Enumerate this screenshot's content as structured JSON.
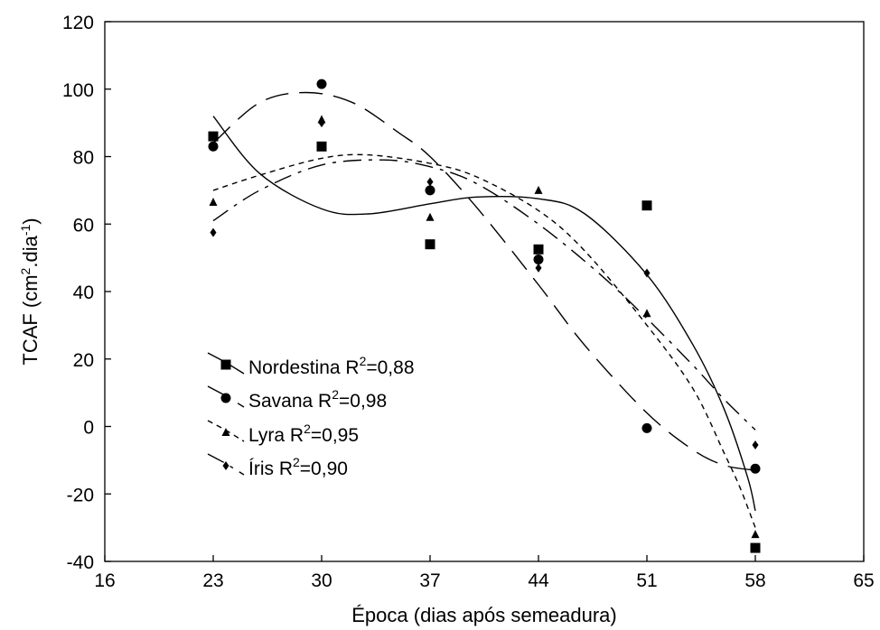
{
  "chart_data": {
    "type": "scatter",
    "xlabel": "Época (dias após semeadura)",
    "ylabel": "TCAF (cm2.dia-1)",
    "xlim": [
      16,
      65
    ],
    "ylim": [
      -40,
      120
    ],
    "xticks": [
      16,
      23,
      30,
      37,
      44,
      51,
      58,
      65
    ],
    "yticks": [
      -40,
      -20,
      0,
      20,
      40,
      60,
      80,
      100,
      120
    ],
    "grid": false,
    "legend_position": "lower-left",
    "series": [
      {
        "name": "Nordestina",
        "r2": "0,88",
        "legend_label": "Nordestina R",
        "legend_value": "=0,88",
        "marker": "square",
        "dash": "solid",
        "x": [
          23,
          30,
          37,
          44,
          51,
          58
        ],
        "y": [
          86,
          83,
          54,
          52.5,
          65.5,
          -36
        ],
        "fit": [
          [
            23,
            92
          ],
          [
            26,
            75
          ],
          [
            30,
            64.5
          ],
          [
            33,
            63
          ],
          [
            37,
            66
          ],
          [
            40,
            68
          ],
          [
            44,
            67.5
          ],
          [
            47,
            63
          ],
          [
            51,
            45
          ],
          [
            54,
            24
          ],
          [
            56,
            5
          ],
          [
            57.5,
            -15
          ],
          [
            58,
            -25
          ]
        ]
      },
      {
        "name": "Savana",
        "r2": "0,98",
        "legend_label": "Savana R",
        "legend_value": "=0,98",
        "marker": "circle",
        "dash": "longdash",
        "x": [
          23,
          30,
          37,
          44,
          51,
          58
        ],
        "y": [
          83,
          101.5,
          70,
          49.5,
          -0.5,
          -12.5
        ],
        "fit": [
          [
            23,
            84
          ],
          [
            26,
            96
          ],
          [
            29,
            99
          ],
          [
            32,
            96
          ],
          [
            35,
            87
          ],
          [
            37,
            80
          ],
          [
            40,
            65
          ],
          [
            44,
            42
          ],
          [
            47,
            24
          ],
          [
            51,
            4
          ],
          [
            54,
            -7
          ],
          [
            56,
            -11.5
          ],
          [
            58,
            -13
          ]
        ]
      },
      {
        "name": "Lyra",
        "r2": "0,95",
        "legend_label": "Lyra R",
        "legend_value": "=0,95",
        "marker": "triangle",
        "dash": "shortdash",
        "x": [
          23,
          30,
          37,
          44,
          51,
          58
        ],
        "y": [
          66.5,
          91,
          62,
          70,
          33.5,
          -32
        ],
        "fit": [
          [
            23,
            70
          ],
          [
            26,
            74.5
          ],
          [
            30,
            79.5
          ],
          [
            33,
            80.5
          ],
          [
            37,
            78
          ],
          [
            40,
            74
          ],
          [
            44,
            64
          ],
          [
            47,
            52
          ],
          [
            51,
            30
          ],
          [
            54,
            11
          ],
          [
            56,
            -8
          ],
          [
            57,
            -18
          ],
          [
            58,
            -30
          ]
        ]
      },
      {
        "name": "Íris",
        "r2": "0,90",
        "legend_label": "Íris R",
        "legend_value": "=0,90",
        "marker": "diamond",
        "dash": "dashdot",
        "x": [
          23,
          30,
          37,
          44,
          51,
          58
        ],
        "y": [
          57.5,
          90,
          72.5,
          47,
          45.5,
          -5.5
        ],
        "fit": [
          [
            23,
            61
          ],
          [
            26,
            70
          ],
          [
            30,
            77.5
          ],
          [
            34,
            79
          ],
          [
            37,
            77
          ],
          [
            40,
            72
          ],
          [
            44,
            60
          ],
          [
            48,
            45
          ],
          [
            51,
            32
          ],
          [
            54,
            18
          ],
          [
            56,
            8
          ],
          [
            58,
            -1
          ]
        ]
      }
    ]
  }
}
